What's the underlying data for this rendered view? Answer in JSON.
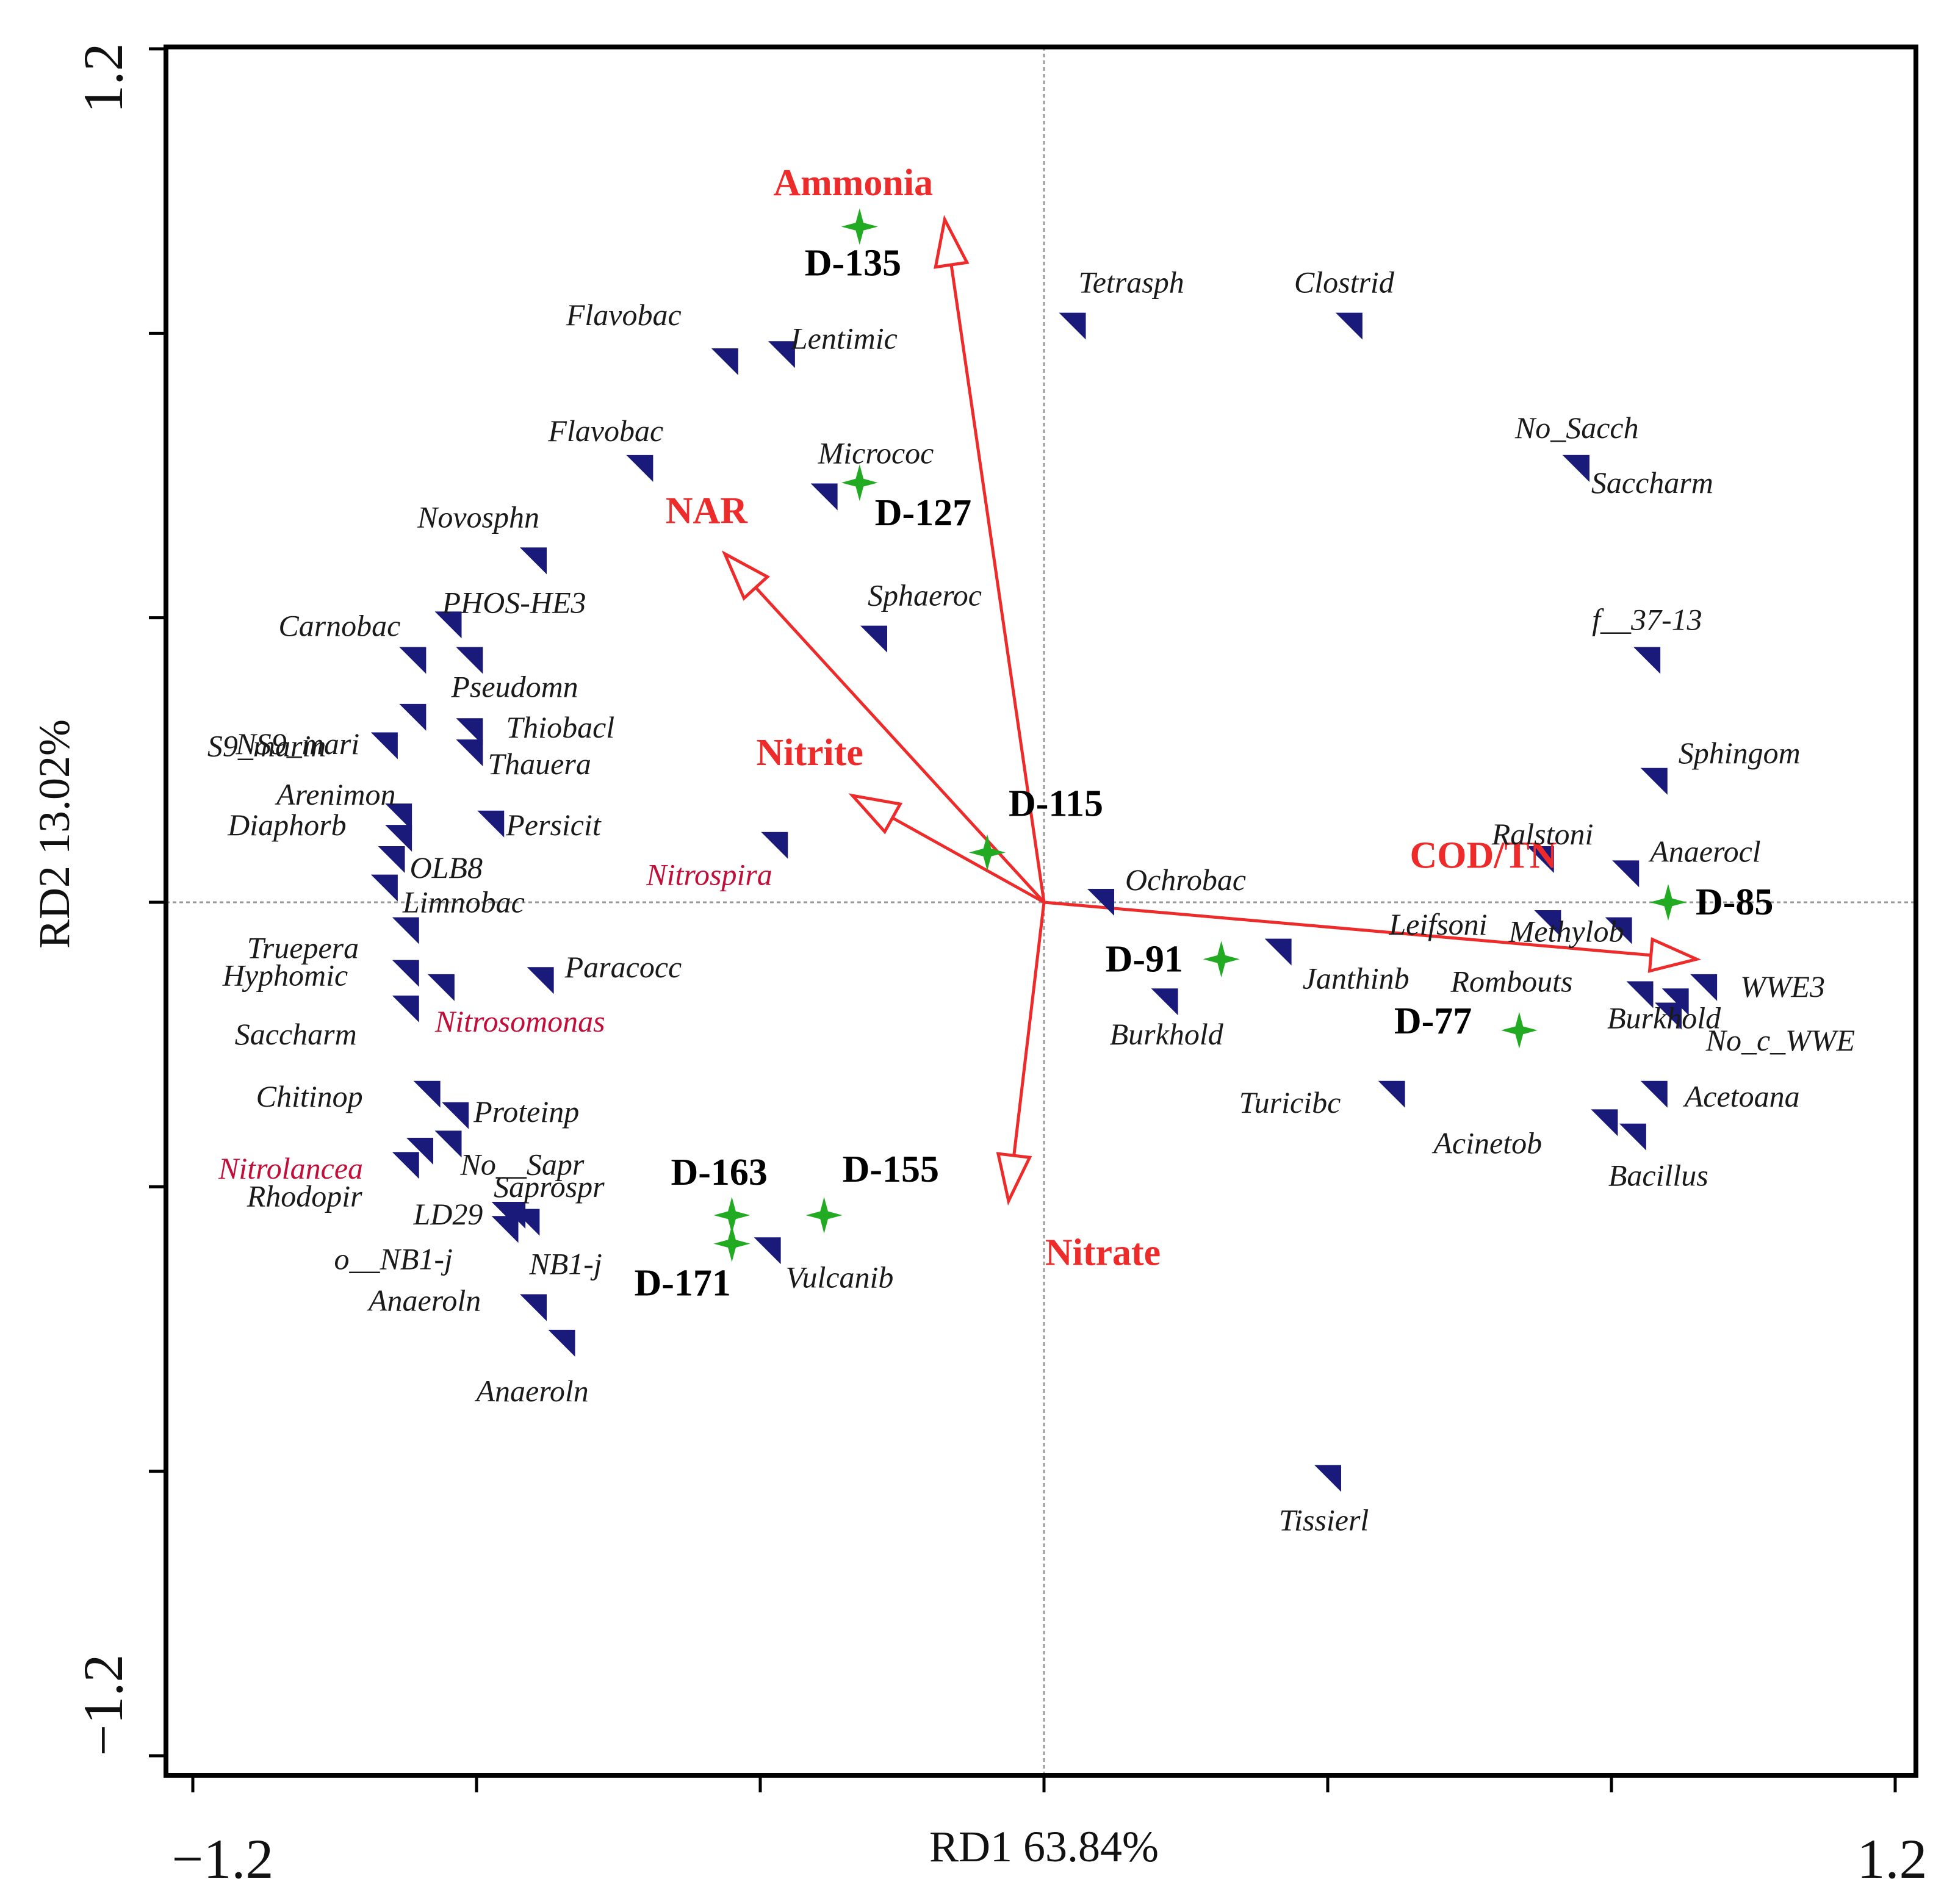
{
  "chart_data": {
    "type": "scatter",
    "subtype": "RDA triplot",
    "xlabel": "RD1 63.84%",
    "ylabel": "RD2 13.02%",
    "xlim": [
      -1.2,
      1.2
    ],
    "ylim": [
      -1.2,
      1.2
    ],
    "x_tick_labels": [
      "−1.2",
      "1.2"
    ],
    "y_tick_labels": [
      "1.2",
      "−1.2"
    ],
    "colors": {
      "species": "#1a1a7a",
      "sample": "#22aa22",
      "arrow": "#ee2b2b",
      "highlight": "#c0103a"
    },
    "env_arrows": [
      {
        "name": "Ammonia",
        "x": -0.14,
        "y": 0.96
      },
      {
        "name": "NAR",
        "x": -0.45,
        "y": 0.49
      },
      {
        "name": "Nitrite",
        "x": -0.27,
        "y": 0.15
      },
      {
        "name": "COD/TN",
        "x": 0.92,
        "y": -0.08
      },
      {
        "name": "Nitrate",
        "x": -0.05,
        "y": -0.42
      }
    ],
    "samples": [
      {
        "name": "D-135",
        "x": -0.26,
        "y": 0.95
      },
      {
        "name": "D-127",
        "x": -0.26,
        "y": 0.59
      },
      {
        "name": "D-115",
        "x": -0.08,
        "y": 0.07
      },
      {
        "name": "D-85",
        "x": 0.88,
        "y": 0.0
      },
      {
        "name": "D-91",
        "x": 0.25,
        "y": -0.08
      },
      {
        "name": "D-77",
        "x": 0.67,
        "y": -0.18
      },
      {
        "name": "D-163",
        "x": -0.44,
        "y": -0.44
      },
      {
        "name": "D-155",
        "x": -0.31,
        "y": -0.44
      },
      {
        "name": "D-171",
        "x": -0.44,
        "y": -0.48
      }
    ],
    "species": [
      {
        "name": "Tetrasph",
        "x": 0.04,
        "y": 0.81
      },
      {
        "name": "Clostrid",
        "x": 0.43,
        "y": 0.81
      },
      {
        "name": "Flavobac",
        "x": -0.45,
        "y": 0.76
      },
      {
        "name": "Lentimic",
        "x": -0.37,
        "y": 0.77
      },
      {
        "name": "Flavobac",
        "x": -0.57,
        "y": 0.61
      },
      {
        "name": "Micrococ",
        "x": -0.31,
        "y": 0.57
      },
      {
        "name": "No_Sacch",
        "x": 0.75,
        "y": 0.61
      },
      {
        "name": "Saccharm",
        "x": 0.75,
        "y": 0.61
      },
      {
        "name": "Novosphn",
        "x": -0.72,
        "y": 0.48
      },
      {
        "name": "PHOS-HE3",
        "x": -0.84,
        "y": 0.39
      },
      {
        "name": "Carnobac",
        "x": -0.89,
        "y": 0.34
      },
      {
        "name": "Pseudomn",
        "x": -0.81,
        "y": 0.34
      },
      {
        "name": "Sphaeroc",
        "x": -0.24,
        "y": 0.37
      },
      {
        "name": "f__37-13",
        "x": 0.85,
        "y": 0.34
      },
      {
        "name": "NS9_mari",
        "x": -0.89,
        "y": 0.26
      },
      {
        "name": "Thiobacl",
        "x": -0.81,
        "y": 0.24
      },
      {
        "name": "S9_marin",
        "x": -0.93,
        "y": 0.22
      },
      {
        "name": "Thauera",
        "x": -0.81,
        "y": 0.21
      },
      {
        "name": "Sphingom",
        "x": 0.86,
        "y": 0.17
      },
      {
        "name": "Arenimon",
        "x": -0.91,
        "y": 0.12
      },
      {
        "name": "Persicit",
        "x": -0.78,
        "y": 0.11
      },
      {
        "name": "Nitrospira",
        "x": -0.38,
        "y": 0.08,
        "highlight": true
      },
      {
        "name": "Diaphorb",
        "x": -0.91,
        "y": 0.09
      },
      {
        "name": "OLB8",
        "x": -0.92,
        "y": 0.06
      },
      {
        "name": "Limnobac",
        "x": -0.93,
        "y": 0.02
      },
      {
        "name": "Ralstoni",
        "x": 0.7,
        "y": 0.06
      },
      {
        "name": "Anaerocl",
        "x": 0.82,
        "y": 0.04
      },
      {
        "name": "Ochrobac",
        "x": 0.08,
        "y": 0.0
      },
      {
        "name": "Leifsoni",
        "x": 0.71,
        "y": -0.03
      },
      {
        "name": "Methylob",
        "x": 0.81,
        "y": -0.04
      },
      {
        "name": "Truepera",
        "x": -0.9,
        "y": -0.04
      },
      {
        "name": "Janthinb",
        "x": 0.33,
        "y": -0.07
      },
      {
        "name": "Hyphomic",
        "x": -0.9,
        "y": -0.1
      },
      {
        "name": "Paracocc",
        "x": -0.71,
        "y": -0.11
      },
      {
        "name": "Rombouts",
        "x": 0.84,
        "y": -0.13
      },
      {
        "name": "WWE3",
        "x": 0.93,
        "y": -0.12
      },
      {
        "name": "No_c_WWE",
        "x": 0.89,
        "y": -0.14
      },
      {
        "name": "Burkhold",
        "x": 0.17,
        "y": -0.14
      },
      {
        "name": "Nitrosomonas",
        "x": -0.85,
        "y": -0.12,
        "highlight": true
      },
      {
        "name": "Saccharm",
        "x": -0.9,
        "y": -0.15
      },
      {
        "name": "Burkhold",
        "x": 0.88,
        "y": -0.16
      },
      {
        "name": "Turicibc",
        "x": 0.49,
        "y": -0.27
      },
      {
        "name": "Chitinop",
        "x": -0.87,
        "y": -0.27
      },
      {
        "name": "Proteinp",
        "x": -0.83,
        "y": -0.3
      },
      {
        "name": "Acetoana",
        "x": 0.86,
        "y": -0.27
      },
      {
        "name": "Acinetob",
        "x": 0.79,
        "y": -0.31
      },
      {
        "name": "Bacillus",
        "x": 0.83,
        "y": -0.33
      },
      {
        "name": "No__Sapr",
        "x": -0.84,
        "y": -0.34
      },
      {
        "name": "Nitrolancea",
        "x": -0.88,
        "y": -0.35,
        "highlight": true
      },
      {
        "name": "Rhodopir",
        "x": -0.9,
        "y": -0.37
      },
      {
        "name": "Saprospr",
        "x": -0.75,
        "y": -0.44
      },
      {
        "name": "LD29",
        "x": -0.76,
        "y": -0.44
      },
      {
        "name": "o__NB1-j",
        "x": -0.76,
        "y": -0.46
      },
      {
        "name": "NB1-j",
        "x": -0.73,
        "y": -0.45
      },
      {
        "name": "Vulcanib",
        "x": -0.39,
        "y": -0.49
      },
      {
        "name": "Anaeroln",
        "x": -0.72,
        "y": -0.57
      },
      {
        "name": "Anaeroln",
        "x": -0.68,
        "y": -0.62
      },
      {
        "name": "Tissierl",
        "x": 0.4,
        "y": -0.81
      }
    ]
  }
}
